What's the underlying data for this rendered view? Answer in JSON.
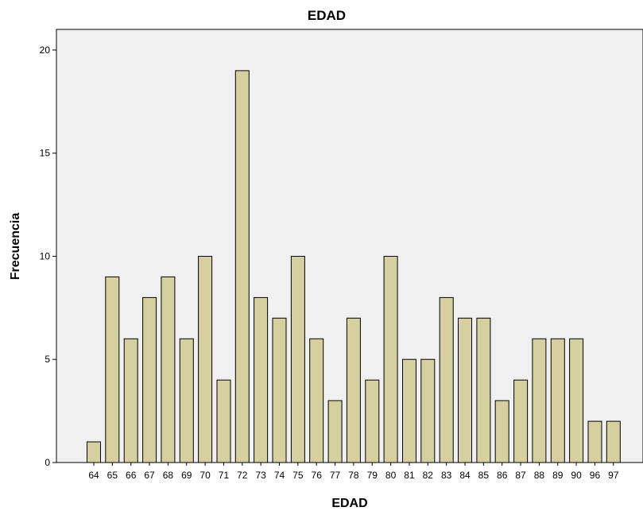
{
  "chart_data": {
    "type": "bar",
    "title": "EDAD",
    "xlabel": "EDAD",
    "ylabel": "Frecuencia",
    "categories": [
      "64",
      "65",
      "66",
      "67",
      "68",
      "69",
      "70",
      "71",
      "72",
      "73",
      "74",
      "75",
      "76",
      "77",
      "78",
      "79",
      "80",
      "81",
      "82",
      "83",
      "84",
      "85",
      "86",
      "87",
      "88",
      "89",
      "90",
      "96",
      "97"
    ],
    "values": [
      1,
      9,
      6,
      8,
      9,
      6,
      10,
      4,
      19,
      8,
      7,
      10,
      6,
      3,
      7,
      4,
      10,
      5,
      5,
      8,
      7,
      7,
      3,
      4,
      6,
      6,
      6,
      2,
      2
    ],
    "ylim": [
      0,
      21
    ],
    "yticks": [
      0,
      5,
      10,
      15,
      20
    ],
    "grid": false,
    "colors": {
      "bar_fill": "#d6cf9f",
      "bar_stroke": "#000000",
      "plot_background": "#f0f0f0",
      "page_background": "#ffffff"
    }
  }
}
